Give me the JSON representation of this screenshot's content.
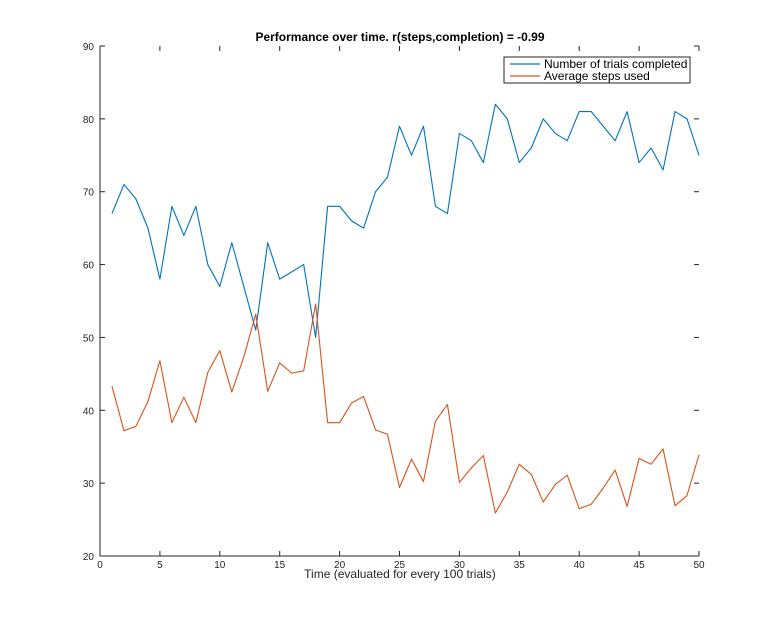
{
  "chart_data": {
    "type": "line",
    "title": "Performance over time. r(steps,completion) = -0.99",
    "xlabel": "Time (evaluated for every 100 trials)",
    "ylabel": "",
    "xlim": [
      0,
      50
    ],
    "ylim": [
      20,
      90
    ],
    "xticks": [
      0,
      5,
      10,
      15,
      20,
      25,
      30,
      35,
      40,
      45,
      50
    ],
    "yticks": [
      20,
      30,
      40,
      50,
      60,
      70,
      80,
      90
    ],
    "grid": false,
    "legend_position": "top-right",
    "x": [
      1,
      2,
      3,
      4,
      5,
      6,
      7,
      8,
      9,
      10,
      11,
      12,
      13,
      14,
      15,
      16,
      17,
      18,
      19,
      20,
      21,
      22,
      23,
      24,
      25,
      26,
      27,
      28,
      29,
      30,
      31,
      32,
      33,
      34,
      35,
      36,
      37,
      38,
      39,
      40,
      41,
      42,
      43,
      44,
      45,
      46,
      47,
      48,
      49,
      50
    ],
    "series": [
      {
        "name": "Number of trials completed",
        "color": "#0072bd",
        "values": [
          67,
          71,
          69,
          65,
          58,
          68,
          64,
          68,
          60,
          57,
          63,
          57,
          51,
          63,
          58,
          59,
          60,
          50,
          68,
          68,
          66,
          65,
          70,
          72,
          79,
          75,
          79,
          68,
          67,
          78,
          77,
          74,
          82,
          80,
          74,
          76,
          80,
          78,
          77,
          81,
          81,
          79,
          77,
          81,
          74,
          76,
          73,
          81,
          80,
          75
        ]
      },
      {
        "name": "Average steps used",
        "color": "#d95319",
        "values": [
          43.3,
          37.2,
          37.8,
          41.2,
          46.8,
          38.3,
          41.8,
          38.3,
          45.2,
          48.2,
          42.5,
          47.3,
          53.2,
          42.6,
          46.5,
          45.1,
          45.4,
          54.6,
          38.3,
          38.3,
          41,
          41.9,
          37.3,
          36.7,
          29.4,
          33.3,
          30.2,
          38.5,
          40.8,
          30.1,
          32.1,
          33.8,
          25.9,
          28.8,
          32.6,
          31.2,
          27.4,
          29.8,
          31.1,
          26.5,
          27.1,
          29.3,
          31.8,
          26.8,
          33.4,
          32.6,
          34.7,
          26.9,
          28.3,
          33.9
        ]
      }
    ]
  }
}
